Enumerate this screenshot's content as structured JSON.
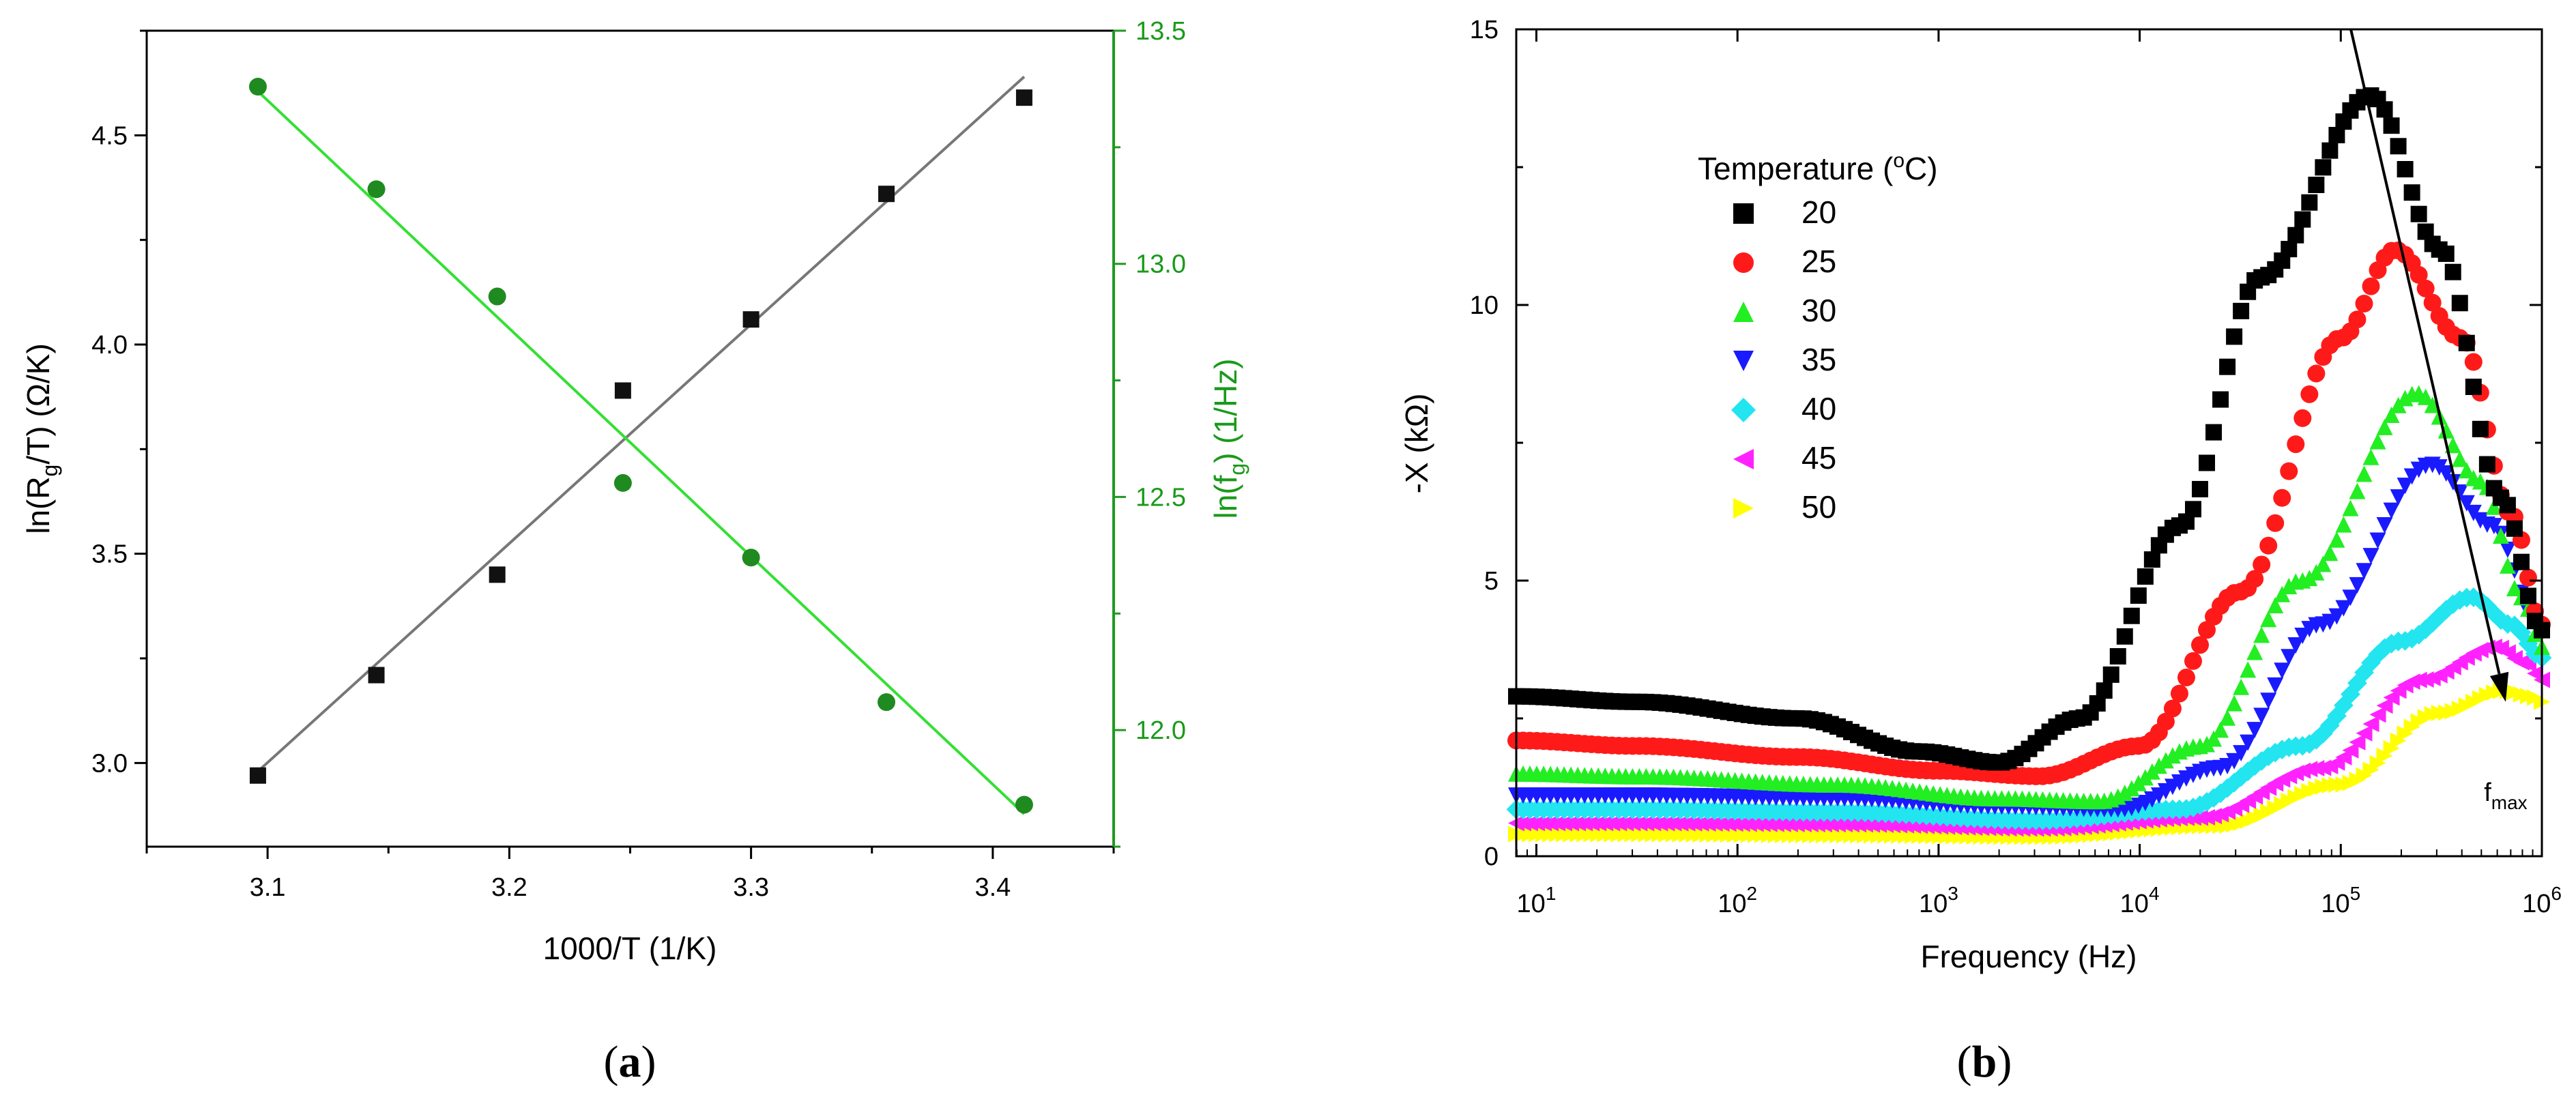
{
  "panel_labels": {
    "a": "a",
    "b": "b"
  },
  "chart_data": [
    {
      "id": "a",
      "type": "scatter",
      "xlabel": "1000/T (1/K)",
      "xlim": [
        3.05,
        3.45
      ],
      "xticks": [
        "3.1",
        "3.2",
        "3.3",
        "3.4"
      ],
      "xtick_values": [
        3.1,
        3.2,
        3.3,
        3.4
      ],
      "ylabel_left": {
        "pre": "ln(R",
        "sub": "g",
        "post": "/T) (Ω/K)"
      },
      "ylim_left": [
        2.8,
        4.75
      ],
      "yticks_left": [
        "3.0",
        "3.5",
        "4.0",
        "4.5"
      ],
      "ytick_values_left": [
        3.0,
        3.5,
        4.0,
        4.5
      ],
      "ylabel_right": {
        "pre": "ln(f",
        "sub": "g",
        "post": ") (1/Hz)"
      },
      "ylim_right": [
        11.75,
        13.5
      ],
      "yticks_right": [
        "12.0",
        "12.5",
        "13.0",
        "13.5"
      ],
      "ytick_values_right": [
        12.0,
        12.5,
        13.0,
        13.5
      ],
      "series": [
        {
          "name": "ln(Rg/T)",
          "axis": "left",
          "marker": "square",
          "color": "#111111",
          "x": [
            3.096,
            3.145,
            3.195,
            3.247,
            3.3,
            3.356,
            3.413
          ],
          "y": [
            2.97,
            3.21,
            3.45,
            3.89,
            4.06,
            4.36,
            4.59
          ],
          "fit": {
            "x": [
              3.096,
              3.413
            ],
            "y": [
              2.98,
              4.64
            ],
            "color": "#777777"
          }
        },
        {
          "name": "ln(fg)",
          "axis": "right",
          "marker": "circle",
          "color": "#1f8a1f",
          "x": [
            3.096,
            3.145,
            3.195,
            3.247,
            3.3,
            3.356,
            3.413
          ],
          "y": [
            13.38,
            13.16,
            12.93,
            12.53,
            12.37,
            12.06,
            11.84
          ],
          "fit": {
            "x": [
              3.096,
              3.413
            ],
            "y": [
              13.37,
              11.82
            ],
            "color": "#33e033"
          }
        }
      ]
    },
    {
      "id": "b",
      "type": "scatter",
      "xscale": "log",
      "xlabel": "Frequency (Hz)",
      "ylabel": "-X (kΩ)",
      "xlim_log10": [
        0.9,
        6.0
      ],
      "ylim": [
        0,
        15
      ],
      "xticks": [
        {
          "base": "10",
          "exp": "1",
          "log": 1
        },
        {
          "base": "10",
          "exp": "2",
          "log": 2
        },
        {
          "base": "10",
          "exp": "3",
          "log": 3
        },
        {
          "base": "10",
          "exp": "4",
          "log": 4
        },
        {
          "base": "10",
          "exp": "5",
          "log": 5
        },
        {
          "base": "10",
          "exp": "6",
          "log": 6
        }
      ],
      "yticks": [
        "0",
        "5",
        "10",
        "15"
      ],
      "ytick_values": [
        0,
        5,
        10,
        15
      ],
      "legend": {
        "title_pre": "Temperature (",
        "title_sup": "o",
        "title_post": "C)",
        "placement": "upper-left"
      },
      "series": [
        {
          "name": "20",
          "marker": "square",
          "color": "#000000",
          "points": [
            [
              0.9,
              2.9
            ],
            [
              1.5,
              2.8
            ],
            [
              2.3,
              2.5
            ],
            [
              2.9,
              1.9
            ],
            [
              3.3,
              1.7
            ],
            [
              3.7,
              2.5
            ],
            [
              4.2,
              6.0
            ],
            [
              4.6,
              10.5
            ],
            [
              5.15,
              13.8
            ],
            [
              5.5,
              11.0
            ],
            [
              5.8,
              6.5
            ],
            [
              6.0,
              4.1
            ]
          ]
        },
        {
          "name": "25",
          "marker": "circle",
          "color": "#ff1a1a",
          "points": [
            [
              0.9,
              2.1
            ],
            [
              1.5,
              2.0
            ],
            [
              2.3,
              1.8
            ],
            [
              3.0,
              1.55
            ],
            [
              3.5,
              1.45
            ],
            [
              4.0,
              2.0
            ],
            [
              4.5,
              4.8
            ],
            [
              5.0,
              9.4
            ],
            [
              5.27,
              11.0
            ],
            [
              5.6,
              9.4
            ],
            [
              5.85,
              6.2
            ],
            [
              6.0,
              4.2
            ]
          ]
        },
        {
          "name": "30",
          "marker": "triangle-up",
          "color": "#22ee22",
          "points": [
            [
              0.9,
              1.5
            ],
            [
              1.5,
              1.45
            ],
            [
              2.5,
              1.3
            ],
            [
              3.3,
              1.05
            ],
            [
              3.8,
              1.0
            ],
            [
              4.3,
              2.0
            ],
            [
              4.8,
              5.0
            ],
            [
              5.38,
              8.4
            ],
            [
              5.7,
              6.8
            ],
            [
              5.9,
              4.7
            ],
            [
              6.0,
              3.8
            ]
          ]
        },
        {
          "name": "35",
          "marker": "triangle-down",
          "color": "#1a1aff",
          "points": [
            [
              0.9,
              1.1
            ],
            [
              1.5,
              1.1
            ],
            [
              2.5,
              1.05
            ],
            [
              3.3,
              0.9
            ],
            [
              3.9,
              0.85
            ],
            [
              4.4,
              1.6
            ],
            [
              4.9,
              4.2
            ],
            [
              5.45,
              7.1
            ],
            [
              5.75,
              6.0
            ],
            [
              6.0,
              4.1
            ]
          ]
        },
        {
          "name": "40",
          "marker": "diamond",
          "color": "#22e5f0",
          "points": [
            [
              0.9,
              0.85
            ],
            [
              1.5,
              0.85
            ],
            [
              2.5,
              0.8
            ],
            [
              3.5,
              0.65
            ],
            [
              4.2,
              0.85
            ],
            [
              4.8,
              2.0
            ],
            [
              5.3,
              3.9
            ],
            [
              5.65,
              4.7
            ],
            [
              5.85,
              4.2
            ],
            [
              6.0,
              3.6
            ]
          ]
        },
        {
          "name": "45",
          "marker": "triangle-left",
          "color": "#ff22ff",
          "points": [
            [
              0.9,
              0.6
            ],
            [
              1.5,
              0.6
            ],
            [
              2.5,
              0.58
            ],
            [
              3.5,
              0.5
            ],
            [
              4.3,
              0.7
            ],
            [
              4.9,
              1.6
            ],
            [
              5.4,
              3.2
            ],
            [
              5.77,
              3.8
            ],
            [
              5.92,
              3.5
            ],
            [
              6.0,
              3.2
            ]
          ]
        },
        {
          "name": "50",
          "marker": "triangle-right",
          "color": "#ffff00",
          "points": [
            [
              0.9,
              0.4
            ],
            [
              1.5,
              0.4
            ],
            [
              2.5,
              0.38
            ],
            [
              3.5,
              0.35
            ],
            [
              4.4,
              0.55
            ],
            [
              5.0,
              1.3
            ],
            [
              5.5,
              2.6
            ],
            [
              5.82,
              3.0
            ],
            [
              5.95,
              2.9
            ],
            [
              6.0,
              2.8
            ]
          ]
        }
      ],
      "annotation": {
        "arrow_from": [
          5.05,
          15.0
        ],
        "arrow_to": [
          5.82,
          2.8
        ],
        "label_base": "f",
        "label_sub": "max",
        "label_at": [
          5.82,
          1.0
        ]
      }
    }
  ]
}
